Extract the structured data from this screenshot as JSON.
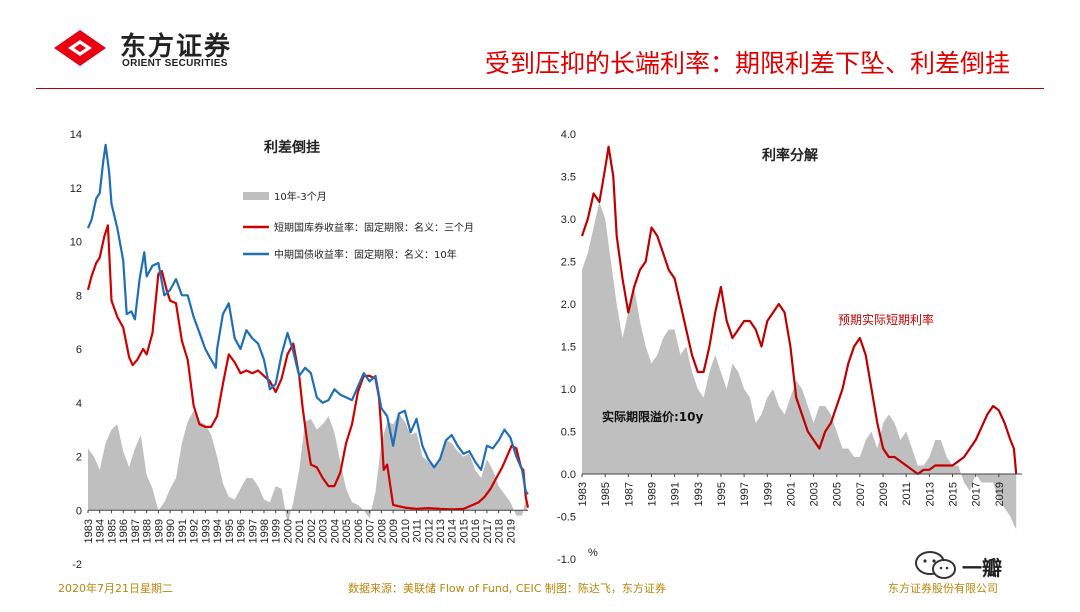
{
  "header": {
    "logo_cn": "东方证券",
    "logo_en": "ORIENT SECURITIES",
    "title": "受到压抑的长端利率：期限利差下坠、利差倒挂",
    "logo_color": "#e60012"
  },
  "footer": {
    "date": "2020年7月21日星期二",
    "source": "数据来源：美联储 Flow of Fund, CEIC   制图：陈达飞，东方证券",
    "company": "东方证券股份有限公司"
  },
  "watermark": {
    "text": "一瓣",
    "icon": "wechat-icon"
  },
  "chart_data": [
    {
      "type": "line",
      "title": "利差倒挂",
      "ylim": [
        -2,
        14
      ],
      "yticks": [
        -2,
        0,
        2,
        4,
        6,
        8,
        10,
        12,
        14
      ],
      "xlim": [
        1983,
        2020.5
      ],
      "xticks": [
        "1983",
        "1984",
        "1985",
        "1986",
        "1987",
        "1988",
        "1989",
        "1990",
        "1991",
        "1992",
        "1993",
        "1994",
        "1995",
        "1996",
        "1997",
        "1998",
        "1999",
        "2000",
        "2001",
        "2002",
        "2003",
        "2004",
        "2005",
        "2006",
        "2007",
        "2008",
        "2009",
        "2010",
        "2011",
        "2012",
        "2013",
        "2014",
        "2015",
        "2016",
        "2017",
        "2018",
        "2019"
      ],
      "legend": [
        "10年-3个月",
        "短期国库券收益率：固定期限：名义：三个月",
        "中期国债收益率：固定期限：名义：10年"
      ],
      "legend_position": "top-right",
      "series": [
        {
          "name": "10年-3个月",
          "kind": "area",
          "color": "#bfbfbf",
          "x": [
            1983,
            1983.5,
            1984,
            1984.5,
            1985,
            1985.5,
            1986,
            1986.5,
            1987,
            1987.5,
            1988,
            1988.5,
            1989,
            1989.5,
            1990,
            1990.5,
            1991,
            1991.5,
            1992,
            1992.5,
            1993,
            1993.5,
            1994,
            1994.5,
            1995,
            1995.5,
            1996,
            1996.5,
            1997,
            1997.5,
            1998,
            1998.5,
            1999,
            1999.5,
            2000,
            2000.5,
            2001,
            2001.5,
            2002,
            2002.5,
            2003,
            2003.5,
            2004,
            2004.5,
            2005,
            2005.5,
            2006,
            2006.5,
            2007,
            2007.5,
            2008,
            2008.5,
            2009,
            2009.5,
            2010,
            2010.5,
            2011,
            2011.5,
            2012,
            2012.5,
            2013,
            2013.5,
            2014,
            2014.5,
            2015,
            2015.5,
            2016,
            2016.5,
            2017,
            2017.5,
            2018,
            2018.5,
            2019,
            2019.5,
            2020,
            2020.4
          ],
          "values": [
            2.3,
            2.0,
            1.5,
            2.5,
            3.0,
            3.2,
            2.2,
            1.6,
            2.3,
            2.8,
            1.3,
            0.8,
            0.0,
            0.3,
            0.8,
            1.2,
            2.5,
            3.3,
            3.7,
            3.3,
            3.2,
            2.8,
            2.0,
            1.0,
            0.5,
            0.4,
            0.8,
            1.2,
            1.2,
            0.9,
            0.4,
            0.3,
            0.9,
            0.8,
            -0.5,
            0.3,
            1.5,
            3.3,
            3.4,
            3.0,
            3.2,
            3.5,
            2.9,
            1.8,
            0.8,
            0.3,
            0.2,
            0.0,
            -0.3,
            0.7,
            2.5,
            3.3,
            3.2,
            3.6,
            3.3,
            2.8,
            2.9,
            2.0,
            1.8,
            1.6,
            1.8,
            2.6,
            2.5,
            2.2,
            2.0,
            2.1,
            1.5,
            1.2,
            1.9,
            1.5,
            0.9,
            0.6,
            0.3,
            -0.2,
            -0.2,
            0.6
          ]
        },
        {
          "name": "短期国库券收益率：固定期限：名义：三个月",
          "kind": "line",
          "color": "#d00000",
          "x": [
            1983,
            1983.3,
            1983.7,
            1984,
            1984.4,
            1984.7,
            1985,
            1985.5,
            1986,
            1986.5,
            1986.8,
            1987.2,
            1987.7,
            1988,
            1988.5,
            1989,
            1989.3,
            1989.7,
            1990,
            1990.5,
            1991,
            1991.5,
            1992,
            1992.5,
            1993,
            1993.5,
            1994,
            1994.5,
            1995,
            1995.5,
            1996,
            1996.5,
            1997,
            1997.5,
            1998,
            1998.5,
            1999,
            1999.5,
            2000,
            2000.5,
            2001,
            2001.3,
            2001.7,
            2002,
            2002.5,
            2003,
            2003.5,
            2004,
            2004.5,
            2005,
            2005.5,
            2006,
            2006.5,
            2007,
            2007.5,
            2007.8,
            2008,
            2008.2,
            2008.5,
            2009,
            2010,
            2011,
            2012,
            2013,
            2014,
            2015,
            2015.8,
            2016.3,
            2016.8,
            2017.3,
            2017.8,
            2018.3,
            2018.8,
            2019.1,
            2019.5,
            2019.9,
            2020.1,
            2020.3,
            2020.5
          ],
          "values": [
            8.2,
            8.7,
            9.2,
            9.4,
            10.2,
            10.6,
            7.8,
            7.2,
            6.8,
            5.7,
            5.4,
            5.6,
            6.0,
            5.8,
            6.6,
            8.8,
            8.9,
            8.2,
            7.8,
            7.7,
            6.3,
            5.6,
            3.9,
            3.2,
            3.1,
            3.1,
            3.5,
            4.7,
            5.8,
            5.5,
            5.1,
            5.2,
            5.1,
            5.2,
            5.0,
            4.8,
            4.4,
            4.9,
            5.8,
            6.2,
            5.0,
            3.8,
            2.5,
            1.7,
            1.6,
            1.2,
            0.9,
            0.9,
            1.4,
            2.5,
            3.2,
            4.4,
            5.0,
            5.0,
            4.9,
            4.2,
            3.0,
            1.5,
            1.7,
            0.2,
            0.1,
            0.05,
            0.08,
            0.05,
            0.03,
            0.05,
            0.2,
            0.3,
            0.5,
            0.8,
            1.2,
            1.6,
            2.1,
            2.4,
            2.3,
            1.6,
            1.5,
            0.5,
            0.1
          ]
        },
        {
          "name": "中期国债收益率：固定期限：名义：10年",
          "kind": "line",
          "color": "#1f6fb8",
          "x": [
            1983,
            1983.3,
            1983.7,
            1984,
            1984.3,
            1984.5,
            1984.8,
            1985,
            1985.5,
            1986,
            1986.3,
            1986.7,
            1987,
            1987.4,
            1987.8,
            1988,
            1988.5,
            1989,
            1989.5,
            1990,
            1990.5,
            1991,
            1991.5,
            1992,
            1992.5,
            1993,
            1993.5,
            1993.9,
            1994,
            1994.5,
            1995,
            1995.5,
            1996,
            1996.5,
            1997,
            1997.5,
            1998,
            1998.5,
            1999,
            1999.5,
            2000,
            2000.5,
            2001,
            2001.5,
            2002,
            2002.5,
            2003,
            2003.5,
            2004,
            2004.5,
            2005,
            2005.5,
            2006,
            2006.5,
            2007,
            2007.5,
            2008,
            2008.5,
            2009,
            2009.5,
            2010,
            2010.5,
            2011,
            2011.5,
            2012,
            2012.5,
            2013,
            2013.5,
            2014,
            2014.5,
            2015,
            2015.5,
            2016,
            2016.5,
            2017,
            2017.5,
            2018,
            2018.5,
            2019,
            2019.5,
            2020,
            2020.3,
            2020.5
          ],
          "values": [
            10.5,
            10.8,
            11.6,
            11.8,
            13.0,
            13.6,
            12.6,
            11.4,
            10.5,
            9.3,
            7.3,
            7.4,
            7.1,
            8.6,
            9.6,
            8.7,
            9.1,
            9.2,
            8.0,
            8.2,
            8.6,
            8.0,
            8.0,
            7.2,
            6.6,
            6.0,
            5.6,
            5.3,
            6.0,
            7.3,
            7.7,
            6.4,
            6.0,
            6.7,
            6.4,
            6.2,
            5.6,
            4.5,
            4.7,
            5.8,
            6.6,
            5.9,
            5.0,
            5.3,
            5.1,
            4.2,
            4.0,
            4.1,
            4.5,
            4.3,
            4.2,
            4.1,
            4.6,
            5.1,
            4.8,
            5.0,
            3.8,
            3.5,
            2.4,
            3.6,
            3.7,
            2.9,
            3.4,
            2.4,
            1.9,
            1.6,
            1.9,
            2.6,
            2.8,
            2.4,
            2.1,
            2.2,
            1.8,
            1.5,
            2.4,
            2.3,
            2.6,
            3.0,
            2.7,
            2.0,
            1.5,
            0.7,
            0.6
          ]
        }
      ]
    },
    {
      "type": "line",
      "title": "利率分解",
      "ylabel": "%",
      "ylim": [
        -1.0,
        4.0
      ],
      "yticks": [
        "-1.0",
        "-0.5",
        "0.0",
        "0.5",
        "1.0",
        "1.5",
        "2.0",
        "2.5",
        "3.0",
        "3.5",
        "4.0"
      ],
      "xlim": [
        1983,
        2021
      ],
      "xticks": [
        "1983",
        "1985",
        "1987",
        "1989",
        "1991",
        "1993",
        "1995",
        "1997",
        "1999",
        "2001",
        "2003",
        "2005",
        "2007",
        "2009",
        "2011",
        "2013",
        "2015",
        "2017",
        "2019"
      ],
      "annotations": [
        "预期实际短期利率",
        "实际期限溢价:10y"
      ],
      "series": [
        {
          "name": "实际期限溢价:10y",
          "kind": "area",
          "color": "#bfbfbf",
          "x": [
            1983,
            1983.5,
            1984,
            1984.5,
            1985,
            1985.5,
            1986,
            1986.5,
            1987,
            1987.5,
            1988,
            1988.5,
            1989,
            1989.5,
            1990,
            1990.5,
            1991,
            1991.5,
            1992,
            1992.5,
            1993,
            1993.5,
            1994,
            1994.5,
            1995,
            1995.5,
            1996,
            1996.5,
            1997,
            1997.5,
            1998,
            1998.5,
            1999,
            1999.5,
            2000,
            2000.5,
            2001,
            2001.5,
            2002,
            2002.5,
            2003,
            2003.5,
            2004,
            2004.5,
            2005,
            2005.5,
            2006,
            2006.5,
            2007,
            2007.5,
            2008,
            2008.5,
            2009,
            2009.5,
            2010,
            2010.5,
            2011,
            2011.5,
            2012,
            2012.5,
            2013,
            2013.5,
            2014,
            2014.5,
            2015,
            2015.5,
            2016,
            2016.5,
            2017,
            2017.5,
            2018,
            2018.5,
            2019,
            2019.5,
            2020,
            2020.3,
            2020.5
          ],
          "values": [
            2.4,
            2.6,
            2.9,
            3.2,
            3.0,
            2.5,
            2.0,
            1.6,
            1.9,
            2.2,
            1.8,
            1.5,
            1.3,
            1.4,
            1.6,
            1.7,
            1.7,
            1.4,
            1.5,
            1.2,
            1.0,
            0.9,
            1.2,
            1.4,
            1.2,
            1.0,
            1.3,
            1.2,
            1.0,
            0.9,
            0.6,
            0.7,
            0.9,
            1.0,
            0.8,
            0.7,
            0.9,
            1.1,
            1.0,
            0.8,
            0.6,
            0.8,
            0.8,
            0.7,
            0.5,
            0.3,
            0.3,
            0.2,
            0.2,
            0.4,
            0.5,
            0.3,
            0.6,
            0.7,
            0.6,
            0.4,
            0.5,
            0.3,
            0.1,
            0.1,
            0.2,
            0.4,
            0.4,
            0.2,
            0.1,
            0.1,
            -0.1,
            -0.2,
            0.0,
            -0.1,
            -0.1,
            -0.1,
            -0.3,
            -0.4,
            -0.5,
            -0.6,
            -0.65
          ]
        },
        {
          "name": "预期实际短期利率",
          "kind": "line",
          "color": "#c00000",
          "x": [
            1983,
            1983.5,
            1984,
            1984.5,
            1985,
            1985.3,
            1985.7,
            1986,
            1986.5,
            1987,
            1987.5,
            1988,
            1988.5,
            1989,
            1989.5,
            1990,
            1990.5,
            1991,
            1991.5,
            1992,
            1992.5,
            1993,
            1993.5,
            1994,
            1994.5,
            1995,
            1995.5,
            1996,
            1996.5,
            1997,
            1997.5,
            1998,
            1998.5,
            1999,
            1999.5,
            2000,
            2000.5,
            2001,
            2001.5,
            2002,
            2002.5,
            2003,
            2003.5,
            2004,
            2004.5,
            2005,
            2005.5,
            2006,
            2006.5,
            2007,
            2007.5,
            2008,
            2008.5,
            2009,
            2009.5,
            2010,
            2010.5,
            2011,
            2011.5,
            2012,
            2012.5,
            2013,
            2013.5,
            2014,
            2014.5,
            2015,
            2015.5,
            2016,
            2016.5,
            2017,
            2017.5,
            2018,
            2018.5,
            2019,
            2019.5,
            2020,
            2020.3,
            2020.5
          ],
          "values": [
            2.8,
            3.0,
            3.3,
            3.2,
            3.6,
            3.85,
            3.5,
            2.8,
            2.3,
            1.9,
            2.2,
            2.4,
            2.5,
            2.9,
            2.8,
            2.6,
            2.4,
            2.3,
            2.0,
            1.7,
            1.4,
            1.2,
            1.2,
            1.5,
            1.9,
            2.2,
            1.8,
            1.6,
            1.7,
            1.8,
            1.8,
            1.7,
            1.5,
            1.8,
            1.9,
            2.0,
            1.9,
            1.5,
            0.9,
            0.7,
            0.5,
            0.4,
            0.3,
            0.5,
            0.6,
            0.8,
            1.0,
            1.3,
            1.5,
            1.6,
            1.4,
            1.0,
            0.6,
            0.3,
            0.2,
            0.2,
            0.15,
            0.1,
            0.05,
            0.0,
            0.05,
            0.05,
            0.1,
            0.1,
            0.1,
            0.1,
            0.15,
            0.2,
            0.3,
            0.4,
            0.55,
            0.7,
            0.8,
            0.75,
            0.6,
            0.4,
            0.3,
            0.0
          ]
        }
      ]
    }
  ]
}
